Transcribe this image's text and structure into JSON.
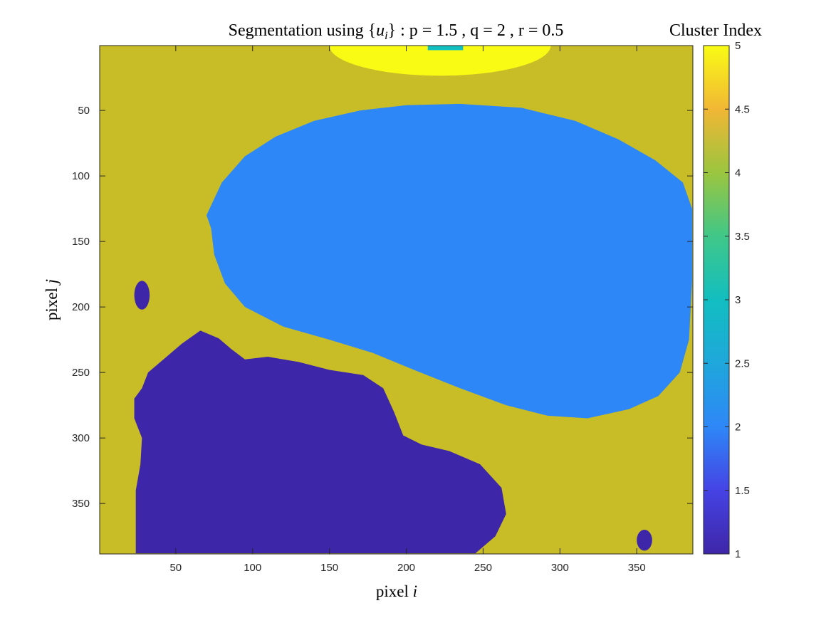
{
  "chart_data": {
    "type": "heatmap",
    "title": "Segmentation using {u_i} : p = 1.5 , q = 2 , r = 0.5",
    "title_parts": {
      "prefix": "Segmentation using {",
      "var": "u",
      "sub": "i",
      "suffix": "} : p = 1.5 , q = 2 , r = 0.5"
    },
    "xlabel": "pixel i",
    "xlabel_parts": {
      "text": "pixel ",
      "var": "i"
    },
    "ylabel": "pixel j",
    "ylabel_parts": {
      "text": "pixel ",
      "var": "j"
    },
    "xlim": [
      0.5,
      386.5
    ],
    "ylim": [
      0.5,
      388.5
    ],
    "y_reversed": true,
    "xticks": [
      50,
      100,
      150,
      200,
      250,
      300,
      350
    ],
    "yticks": [
      50,
      100,
      150,
      200,
      250,
      300,
      350
    ],
    "colorbar": {
      "label": "Cluster Index",
      "clim": [
        1,
        5
      ],
      "colormap": "parula",
      "ticks": [
        1,
        1.5,
        2,
        2.5,
        3,
        3.5,
        4,
        4.5,
        5
      ],
      "tick_labels": [
        "1",
        "1.5",
        "2",
        "2.5",
        "3",
        "3.5",
        "4",
        "4.5",
        "5"
      ]
    },
    "clusters": [
      {
        "index": 1,
        "color": "#3e26a8",
        "region": "lower-left tissue mass"
      },
      {
        "index": 2,
        "color": "#2e87f7",
        "region": "large upper-central ellipse"
      },
      {
        "index": 3,
        "color": "#12bec0",
        "region": "small patch at top center"
      },
      {
        "index": 4,
        "color": "#c9bd27",
        "region": "background"
      },
      {
        "index": 5,
        "color": "#f9fb15",
        "region": "cap at top center"
      }
    ],
    "regions": [
      {
        "cluster": 5,
        "shape": "half-ellipse",
        "cx": 222,
        "cy": 0.5,
        "rx": 72,
        "ry": 23
      },
      {
        "cluster": 3,
        "shape": "rect",
        "x0": 214,
        "x1": 237,
        "y0": 0.5,
        "y1": 4
      },
      {
        "cluster": 2,
        "shape": "polygon",
        "points": [
          [
            70,
            130
          ],
          [
            80,
            105
          ],
          [
            95,
            85
          ],
          [
            115,
            70
          ],
          [
            140,
            58
          ],
          [
            170,
            50
          ],
          [
            200,
            46
          ],
          [
            235,
            45
          ],
          [
            275,
            48
          ],
          [
            310,
            58
          ],
          [
            338,
            72
          ],
          [
            362,
            88
          ],
          [
            380,
            105
          ],
          [
            386,
            125
          ],
          [
            386,
            180
          ],
          [
            384,
            225
          ],
          [
            378,
            250
          ],
          [
            364,
            268
          ],
          [
            345,
            278
          ],
          [
            318,
            285
          ],
          [
            292,
            283
          ],
          [
            265,
            275
          ],
          [
            235,
            262
          ],
          [
            205,
            248
          ],
          [
            178,
            235
          ],
          [
            150,
            225
          ],
          [
            120,
            215
          ],
          [
            95,
            200
          ],
          [
            82,
            182
          ],
          [
            75,
            160
          ],
          [
            73,
            140
          ]
        ]
      },
      {
        "cluster": 4,
        "shape": "polygon",
        "points": [
          [
            100,
            218
          ],
          [
            130,
            228
          ],
          [
            160,
            236
          ],
          [
            185,
            245
          ],
          [
            175,
            250
          ],
          [
            150,
            242
          ],
          [
            120,
            232
          ]
        ]
      },
      {
        "cluster": 1,
        "shape": "polygon",
        "points": [
          [
            24,
            388
          ],
          [
            24,
            340
          ],
          [
            27,
            320
          ],
          [
            28,
            300
          ],
          [
            23,
            285
          ],
          [
            23,
            270
          ],
          [
            28,
            262
          ],
          [
            32,
            250
          ],
          [
            42,
            240
          ],
          [
            54,
            228
          ],
          [
            66,
            218
          ],
          [
            78,
            224
          ],
          [
            86,
            232
          ],
          [
            95,
            240
          ],
          [
            110,
            238
          ],
          [
            130,
            242
          ],
          [
            150,
            248
          ],
          [
            172,
            252
          ],
          [
            185,
            262
          ],
          [
            192,
            280
          ],
          [
            198,
            298
          ],
          [
            210,
            305
          ],
          [
            228,
            310
          ],
          [
            248,
            320
          ],
          [
            262,
            338
          ],
          [
            265,
            358
          ],
          [
            258,
            375
          ],
          [
            245,
            388
          ]
        ]
      },
      {
        "cluster": 1,
        "shape": "ellipse",
        "cx": 28,
        "cy": 191,
        "rx": 5,
        "ry": 11
      },
      {
        "cluster": 1,
        "shape": "ellipse",
        "cx": 355,
        "cy": 378,
        "rx": 5,
        "ry": 8
      }
    ]
  }
}
